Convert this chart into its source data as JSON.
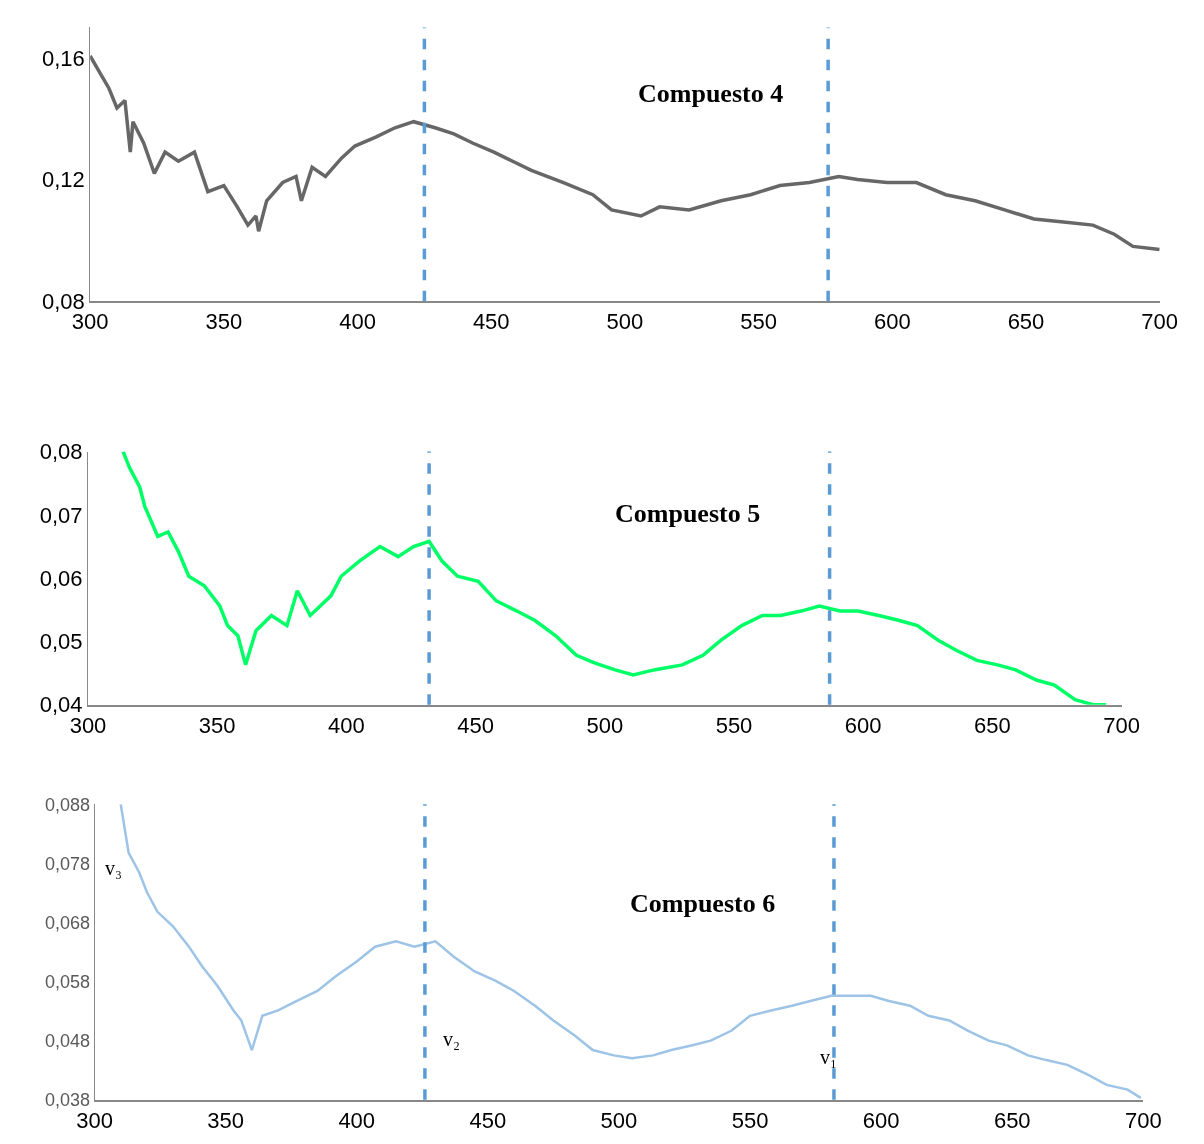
{
  "chart_data": [
    {
      "type": "line",
      "title": "Compuesto 4",
      "xlim": [
        300,
        700
      ],
      "xticks": [
        300,
        350,
        400,
        450,
        500,
        550,
        600,
        650,
        700
      ],
      "ylim": [
        0.08,
        0.17
      ],
      "yticks": [
        {
          "value": 0.08,
          "label": "0,08"
        },
        {
          "value": 0.12,
          "label": "0,12"
        },
        {
          "value": 0.16,
          "label": "0,16"
        }
      ],
      "series": [
        {
          "color": "#676767",
          "x": [
            300,
            303.7,
            307,
            310,
            313,
            315,
            316,
            320,
            324,
            328,
            333,
            339,
            344,
            350,
            355,
            359,
            362,
            363,
            366,
            372,
            377,
            379,
            383,
            388,
            394,
            399,
            407,
            414,
            421,
            429,
            436,
            443,
            451,
            458,
            465,
            477,
            488,
            495,
            506,
            513,
            524,
            536,
            547,
            558,
            569,
            580,
            587,
            598,
            609,
            620,
            631,
            642,
            653,
            664,
            675,
            683,
            690,
            700
          ],
          "values": [
            0.1606,
            0.155,
            0.15,
            0.1435,
            0.146,
            0.129,
            0.139,
            0.132,
            0.122,
            0.129,
            0.126,
            0.129,
            0.116,
            0.118,
            0.111,
            0.105,
            0.108,
            0.103,
            0.113,
            0.119,
            0.121,
            0.113,
            0.124,
            0.121,
            0.127,
            0.131,
            0.134,
            0.137,
            0.139,
            0.137,
            0.135,
            0.132,
            0.129,
            0.126,
            0.123,
            0.119,
            0.115,
            0.11,
            0.108,
            0.111,
            0.11,
            0.113,
            0.115,
            0.118,
            0.119,
            0.121,
            0.12,
            0.119,
            0.119,
            0.115,
            0.113,
            0.11,
            0.107,
            0.106,
            0.105,
            0.102,
            0.098,
            0.097
          ]
        }
      ],
      "ref_lines": [
        {
          "axis": "x",
          "value": 425,
          "color": "#5b9bd5",
          "line_style": "dashed"
        },
        {
          "axis": "x",
          "value": 576,
          "color": "#5b9bd5",
          "line_style": "dashed"
        }
      ]
    },
    {
      "type": "line",
      "title": "Compuesto 5",
      "xlim": [
        300,
        700
      ],
      "xticks": [
        300,
        350,
        400,
        450,
        500,
        550,
        600,
        650,
        700
      ],
      "ylim": [
        0.04,
        0.08
      ],
      "yticks": [
        {
          "value": 0.04,
          "label": "0,04"
        },
        {
          "value": 0.05,
          "label": "0,05"
        },
        {
          "value": 0.06,
          "label": "0,06"
        },
        {
          "value": 0.07,
          "label": "0,07"
        },
        {
          "value": 0.08,
          "label": "0,08"
        }
      ],
      "series": [
        {
          "color": "#00ff66",
          "x": [
            313.6,
            316,
            320,
            322,
            327,
            331,
            335,
            339,
            345,
            351,
            354,
            358,
            361,
            365,
            371,
            377,
            381,
            386,
            394,
            398,
            405,
            413,
            420,
            426,
            432,
            437,
            443,
            451,
            458,
            466,
            473,
            481,
            489,
            496,
            504,
            511,
            519,
            530,
            538,
            545,
            553,
            561,
            568,
            576,
            583,
            591,
            598,
            606,
            614,
            621,
            629,
            636,
            644,
            652,
            659,
            667,
            674,
            682,
            689,
            694
          ],
          "values": [
            0.08,
            0.0775,
            0.0744,
            0.0713,
            0.0666,
            0.0673,
            0.0642,
            0.0603,
            0.0588,
            0.0556,
            0.0525,
            0.0509,
            0.0463,
            0.0517,
            0.0541,
            0.0525,
            0.058,
            0.0541,
            0.0572,
            0.0603,
            0.0627,
            0.065,
            0.0634,
            0.065,
            0.0658,
            0.0627,
            0.0603,
            0.0595,
            0.0564,
            0.0548,
            0.0533,
            0.0509,
            0.0478,
            0.0466,
            0.0455,
            0.0447,
            0.0455,
            0.0463,
            0.0478,
            0.0502,
            0.0525,
            0.0541,
            0.0541,
            0.0548,
            0.0556,
            0.0548,
            0.0548,
            0.0541,
            0.0533,
            0.0525,
            0.0502,
            0.0486,
            0.047,
            0.0463,
            0.0455,
            0.0439,
            0.0431,
            0.0408,
            0.04,
            0.04
          ]
        }
      ],
      "ref_lines": [
        {
          "axis": "x",
          "value": 432,
          "color": "#5b9bd5",
          "line_style": "dashed"
        },
        {
          "axis": "x",
          "value": 587,
          "color": "#5b9bd5",
          "line_style": "dashed"
        }
      ]
    },
    {
      "type": "line",
      "title": "Compuesto 6",
      "xlim": [
        300,
        700
      ],
      "xticks": [
        300,
        350,
        400,
        450,
        500,
        550,
        600,
        650,
        700
      ],
      "ylim": [
        0.038,
        0.088
      ],
      "yticks": [
        {
          "value": 0.038,
          "label": "0,038"
        },
        {
          "value": 0.048,
          "label": "0,048"
        },
        {
          "value": 0.058,
          "label": "0,058"
        },
        {
          "value": 0.068,
          "label": "0,068"
        },
        {
          "value": 0.078,
          "label": "0,078"
        },
        {
          "value": 0.088,
          "label": "0,088"
        }
      ],
      "series": [
        {
          "color": "#9dc3e6",
          "x": [
            310,
            313,
            317,
            320,
            324,
            330,
            336,
            341,
            347,
            353,
            356,
            360,
            364,
            370,
            377,
            385,
            392,
            400,
            407,
            415,
            422,
            430,
            437,
            445,
            453,
            460,
            468,
            475,
            483,
            490,
            498,
            505,
            513,
            520,
            528,
            535,
            543,
            550,
            558,
            566,
            573,
            581,
            588,
            596,
            603,
            611,
            618,
            626,
            633,
            641,
            648,
            656,
            663,
            671,
            679,
            686,
            694,
            699
          ],
          "values": [
            0.088,
            0.0798,
            0.0765,
            0.0731,
            0.0698,
            0.0673,
            0.0639,
            0.0606,
            0.0572,
            0.0531,
            0.0514,
            0.0464,
            0.0522,
            0.0531,
            0.0547,
            0.0564,
            0.0589,
            0.0614,
            0.0639,
            0.0648,
            0.0639,
            0.0648,
            0.0622,
            0.0597,
            0.0581,
            0.0564,
            0.0539,
            0.0514,
            0.0489,
            0.0464,
            0.0455,
            0.045,
            0.0455,
            0.0464,
            0.0472,
            0.048,
            0.0497,
            0.0522,
            0.0531,
            0.0539,
            0.0547,
            0.0556,
            0.0556,
            0.0556,
            0.0547,
            0.0539,
            0.0522,
            0.0514,
            0.0497,
            0.048,
            0.0472,
            0.0455,
            0.0447,
            0.0439,
            0.0422,
            0.0405,
            0.0397,
            0.0383
          ]
        }
      ],
      "ref_lines": [
        {
          "axis": "x",
          "value": 426,
          "color": "#5b9bd5",
          "line_style": "dashed"
        },
        {
          "axis": "x",
          "value": 582,
          "color": "#5b9bd5",
          "line_style": "dashed"
        }
      ],
      "annotations": [
        "v₃",
        "v₂",
        "v₁"
      ]
    }
  ]
}
